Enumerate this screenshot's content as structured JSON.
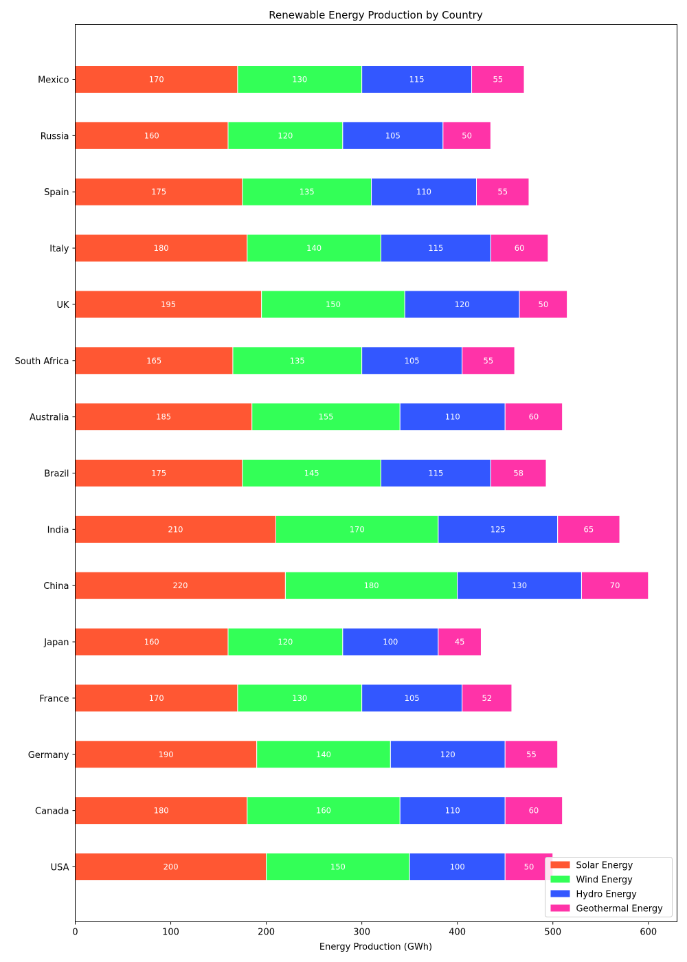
{
  "chart_data": {
    "type": "bar",
    "orientation": "horizontal",
    "stacked": true,
    "title": "Renewable Energy Production by Country",
    "xlabel": "Energy Production (GWh)",
    "ylabel": "",
    "xlim": [
      0,
      630
    ],
    "xticks": [
      "0",
      "100",
      "200",
      "300",
      "400",
      "500",
      "600"
    ],
    "grid": false,
    "legend_position": "lower-right",
    "categories": [
      "USA",
      "Canada",
      "Germany",
      "France",
      "Japan",
      "China",
      "India",
      "Brazil",
      "Australia",
      "South Africa",
      "UK",
      "Italy",
      "Spain",
      "Russia",
      "Mexico"
    ],
    "series": [
      {
        "name": "Solar Energy",
        "color": "#ff5733",
        "values": [
          200,
          180,
          190,
          170,
          160,
          220,
          210,
          175,
          185,
          165,
          195,
          180,
          175,
          160,
          170
        ]
      },
      {
        "name": "Wind Energy",
        "color": "#33ff57",
        "values": [
          150,
          160,
          140,
          130,
          120,
          180,
          170,
          145,
          155,
          135,
          150,
          140,
          135,
          120,
          130
        ]
      },
      {
        "name": "Hydro Energy",
        "color": "#3357ff",
        "values": [
          100,
          110,
          120,
          105,
          100,
          130,
          125,
          115,
          110,
          105,
          120,
          115,
          110,
          105,
          115
        ]
      },
      {
        "name": "Geothermal Energy",
        "color": "#ff33a8",
        "values": [
          50,
          60,
          55,
          52,
          45,
          70,
          65,
          58,
          60,
          55,
          50,
          60,
          55,
          50,
          55
        ]
      }
    ]
  }
}
